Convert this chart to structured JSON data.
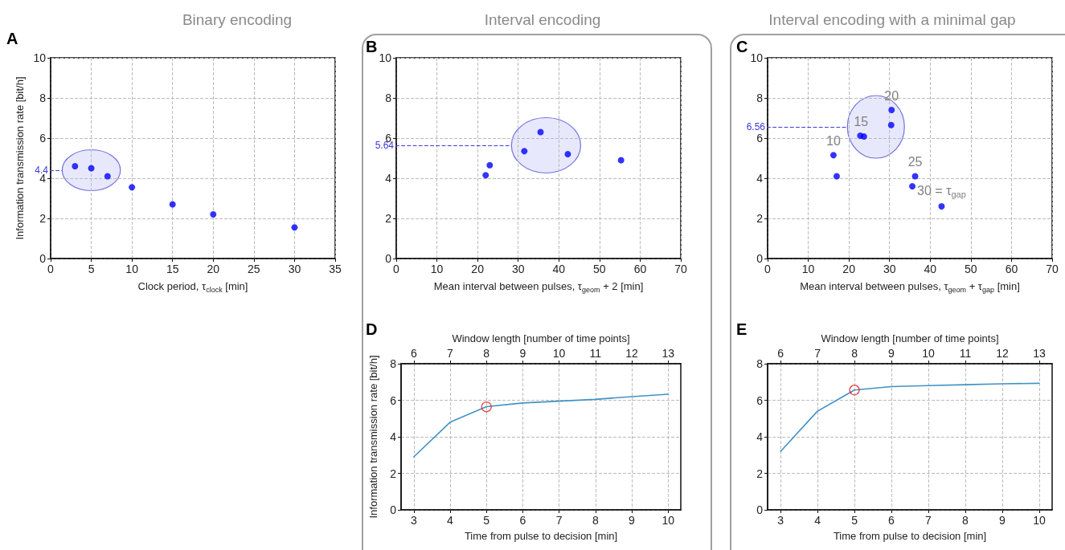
{
  "chart_data": [
    {
      "type": "scatter",
      "title": "Binary encoding",
      "xlabel": "Clock period, τ$_{clock}$ [min]",
      "ylabel": "Information transmission rate [bit/h]",
      "annotations": [
        "A"
      ],
      "xlim": [
        0,
        35
      ],
      "xticks": [
        0,
        5,
        10,
        15,
        20,
        25,
        30,
        35
      ],
      "ylim": [
        0,
        10
      ],
      "yticks": [
        0,
        2,
        4,
        6,
        8,
        10
      ],
      "grid": true,
      "marker": "circle",
      "series": [
        {
          "color": "#0000ff",
          "x": [
            3,
            5,
            7
          ],
          "values": [
            4.6,
            4.5,
            4.1
          ]
        },
        {
          "color": "#0000ff",
          "x": [
            10,
            15,
            20,
            30
          ],
          "values": [
            3.55,
            2.7,
            2.2,
            1.55
          ]
        }
      ],
      "ref_lines": [
        {
          "axis": "y",
          "value": 4.4,
          "label": "4.4",
          "color": "#3b3bd6",
          "line_style": "dashed"
        }
      ]
    },
    {
      "type": "scatter",
      "title": "Interval encoding",
      "xlabel": "Mean interval between pulses, τ$_{geom}$ + 2 [min]",
      "annotations": [
        "B"
      ],
      "xlim": [
        0,
        70
      ],
      "xticks": [
        0,
        10,
        20,
        30,
        40,
        50,
        60,
        70
      ],
      "ylim": [
        0,
        10
      ],
      "yticks": [
        0,
        2,
        4,
        6,
        8,
        10
      ],
      "grid": true,
      "marker": "circle",
      "series": [
        {
          "color": "#0000ff",
          "x": [
            31.5,
            35.5,
            42.2
          ],
          "values": [
            5.35,
            6.3,
            5.2
          ]
        },
        {
          "color": "#0000ff",
          "x": [
            22,
            23,
            55.3
          ],
          "values": [
            4.15,
            4.65,
            4.9
          ]
        }
      ],
      "ref_lines": [
        {
          "axis": "y",
          "value": 5.64,
          "label": "5.64",
          "color": "#3b3bd6",
          "line_style": "dashed"
        }
      ]
    },
    {
      "type": "scatter",
      "title": "Interval encoding with a minimal gap",
      "xlabel": "Mean interval between pulses, τ$_{geom}$ + τ$_{gap}$ [min]",
      "annotations": [
        "C",
        {
          "text": "10",
          "x": 16.2,
          "y": 5.15
        },
        {
          "text": "15",
          "x": 23,
          "y": 6.1
        },
        {
          "text": "20",
          "x": 30.5,
          "y": 7.4
        },
        {
          "text": "25",
          "x": 36.3,
          "y": 4.1
        },
        {
          "text": "30 = τ$_{gap}$",
          "x": 42.8,
          "y": 2.6
        }
      ],
      "xlim": [
        0,
        70
      ],
      "xticks": [
        0,
        10,
        20,
        30,
        40,
        50,
        60,
        70
      ],
      "ylim": [
        0,
        10
      ],
      "yticks": [
        0,
        2,
        4,
        6,
        8,
        10
      ],
      "grid": true,
      "marker": "circle",
      "series": [
        {
          "color": "#0000ff",
          "x": [
            22.8,
            23.7,
            30.5,
            30.4
          ],
          "values": [
            6.12,
            6.08,
            7.4,
            6.65
          ]
        },
        {
          "color": "#0000ff",
          "x": [
            16.2,
            17,
            35.6,
            36.3,
            42.8
          ],
          "values": [
            5.15,
            4.1,
            3.6,
            4.1,
            2.6
          ]
        }
      ],
      "ref_lines": [
        {
          "axis": "y",
          "value": 6.56,
          "label": "6.56",
          "color": "#3b3bd6",
          "line_style": "dashed"
        }
      ]
    },
    {
      "type": "line",
      "xlabel": "Time from pulse to decision [min]",
      "x2label": "Window length [number of time points]",
      "ylabel": "Information transmission rate [bit/h]",
      "annotations": [
        "D"
      ],
      "x": [
        3,
        4,
        5,
        6,
        7,
        8,
        9,
        10
      ],
      "xlim": [
        2.65,
        10.35
      ],
      "xticks": [
        3,
        4,
        5,
        6,
        7,
        8,
        9,
        10
      ],
      "x2lim": [
        5.65,
        13.35
      ],
      "x2ticks": [
        6,
        7,
        8,
        9,
        10,
        11,
        12,
        13
      ],
      "ylim": [
        0,
        8
      ],
      "yticks": [
        0,
        2,
        4,
        6,
        8
      ],
      "grid": true,
      "line_style": "solid",
      "series": [
        {
          "color": "#4292c6",
          "values": [
            2.9,
            4.8,
            5.65,
            5.85,
            5.95,
            6.05,
            6.2,
            6.33
          ]
        },
        {
          "type": "scatter",
          "color": "#e41a1c",
          "x": [
            5
          ],
          "values": [
            5.64
          ],
          "marker": "circle"
        }
      ]
    },
    {
      "type": "line",
      "xlabel": "Time from pulse to decision [min]",
      "x2label": "Window length [number of time points]",
      "annotations": [
        "E"
      ],
      "x": [
        3,
        4,
        5,
        6,
        7,
        8,
        9,
        10
      ],
      "xlim": [
        2.65,
        10.35
      ],
      "xticks": [
        3,
        4,
        5,
        6,
        7,
        8,
        9,
        10
      ],
      "x2lim": [
        5.65,
        13.35
      ],
      "x2ticks": [
        6,
        7,
        8,
        9,
        10,
        11,
        12,
        13
      ],
      "ylim": [
        0,
        8
      ],
      "yticks": [
        0,
        2,
        4,
        6,
        8
      ],
      "grid": true,
      "line_style": "solid",
      "series": [
        {
          "color": "#4292c6",
          "values": [
            3.2,
            5.4,
            6.56,
            6.75,
            6.8,
            6.85,
            6.9,
            6.93
          ]
        },
        {
          "type": "scatter",
          "color": "#e41a1c",
          "x": [
            5
          ],
          "values": [
            6.56
          ],
          "marker": "circle"
        }
      ]
    }
  ]
}
